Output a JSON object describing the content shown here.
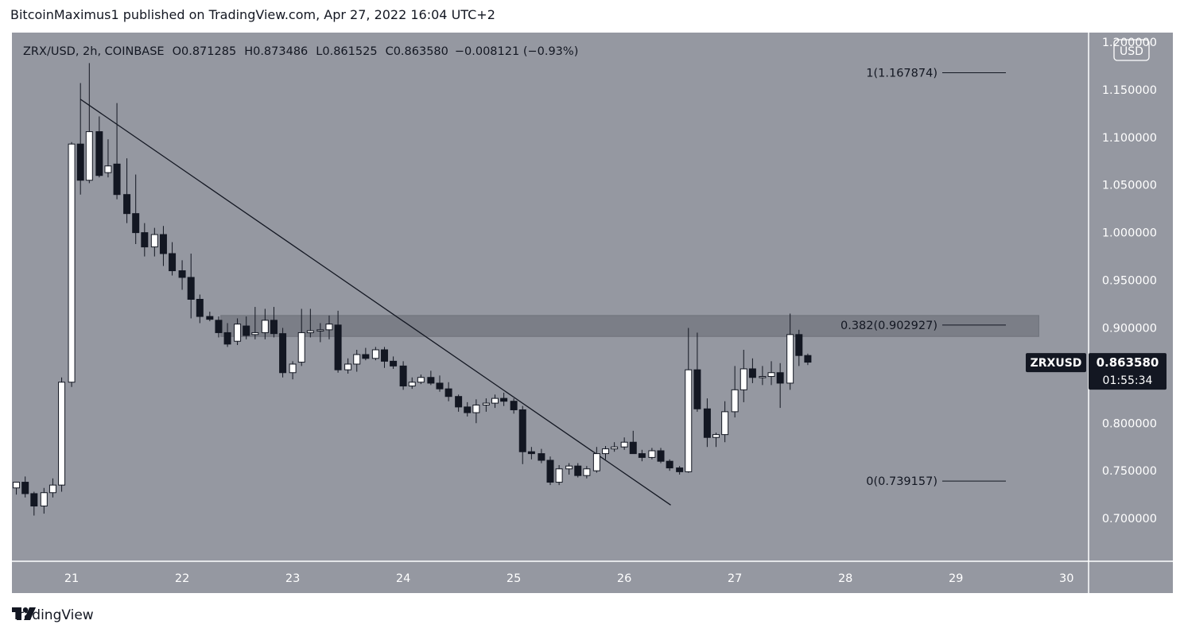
{
  "header": {
    "published_text": "BitcoinMaximus1 published on TradingView.com, Apr 27, 2022 16:04 UTC+2"
  },
  "footer": {
    "brand": "TradingView"
  },
  "colors": {
    "chart_bg": "#9598a1",
    "bull_body": "#ffffff",
    "bear_body": "#131722",
    "text": "#131722",
    "zone": "#7b7e87"
  },
  "chart_data": {
    "type": "candlestick",
    "symbol": "ZRX/USD",
    "interval": "2h",
    "exchange": "COINBASE",
    "ohlc_legend": {
      "o_label": "O",
      "o_value": "0.871285",
      "h_label": "H",
      "h_value": "0.873486",
      "l_label": "L",
      "l_value": "0.861525",
      "c_label": "C",
      "c_value": "0.863580",
      "change": "−0.008121 (−0.93%)"
    },
    "currency_label": "USD",
    "y_ticks": [
      1.2,
      1.15,
      1.1,
      1.05,
      1.0,
      0.95,
      0.9,
      0.85,
      0.8,
      0.75,
      0.7
    ],
    "y_tick_labels": [
      "1.200000",
      "1.150000",
      "1.100000",
      "1.050000",
      "1.000000",
      "0.950000",
      "0.900000",
      "0.850000",
      "0.800000",
      "0.750000",
      "0.700000"
    ],
    "x_ticks": [
      21,
      22,
      23,
      24,
      25,
      26,
      27,
      28,
      29,
      30
    ],
    "x_tick_labels": [
      "21",
      "22",
      "23",
      "24",
      "25",
      "26",
      "27",
      "28",
      "29",
      "30"
    ],
    "y_range": [
      0.655,
      1.21
    ],
    "x_range": [
      20.46,
      30.2
    ],
    "current_price": {
      "symbol_tag": "ZRXUSD",
      "price": "0.863580",
      "countdown": "01:55:34",
      "value": 0.86358
    },
    "fib_levels": [
      {
        "label": "1(1.167874)",
        "value": 1.167874
      },
      {
        "label": "0.382(0.902927)",
        "value": 0.902927
      },
      {
        "label": "0(0.739157)",
        "value": 0.739157
      }
    ],
    "resistance_zone": {
      "low": 0.891,
      "high": 0.913,
      "x_start": 22.35,
      "x_end": 29.75
    },
    "trendline": {
      "x1": 21.08,
      "y1": 1.14,
      "x2": 26.42,
      "y2": 0.714
    },
    "candles": [
      [
        20.5,
        0.732,
        0.738,
        0.725,
        0.738
      ],
      [
        20.58,
        0.738,
        0.744,
        0.722,
        0.726
      ],
      [
        20.66,
        0.726,
        0.728,
        0.703,
        0.713
      ],
      [
        20.75,
        0.713,
        0.732,
        0.705,
        0.727
      ],
      [
        20.83,
        0.727,
        0.742,
        0.722,
        0.735
      ],
      [
        20.91,
        0.735,
        0.848,
        0.728,
        0.843
      ],
      [
        21.0,
        0.843,
        1.095,
        0.838,
        1.093
      ],
      [
        21.08,
        1.093,
        1.157,
        1.04,
        1.055
      ],
      [
        21.16,
        1.055,
        1.178,
        1.052,
        1.106
      ],
      [
        21.25,
        1.106,
        1.122,
        1.058,
        1.06
      ],
      [
        21.33,
        1.063,
        1.098,
        1.058,
        1.07
      ],
      [
        21.41,
        1.072,
        1.136,
        1.035,
        1.04
      ],
      [
        21.5,
        1.04,
        1.078,
        1.01,
        1.02
      ],
      [
        21.58,
        1.02,
        1.061,
        0.988,
        1.0
      ],
      [
        21.66,
        1.0,
        1.01,
        0.975,
        0.985
      ],
      [
        21.75,
        0.985,
        1.005,
        0.975,
        0.998
      ],
      [
        21.83,
        0.998,
        1.007,
        0.965,
        0.978
      ],
      [
        21.91,
        0.978,
        0.99,
        0.955,
        0.96
      ],
      [
        22.0,
        0.96,
        0.971,
        0.94,
        0.953
      ],
      [
        22.08,
        0.953,
        0.978,
        0.91,
        0.93
      ],
      [
        22.16,
        0.93,
        0.935,
        0.905,
        0.912
      ],
      [
        22.25,
        0.912,
        0.917,
        0.907,
        0.909
      ],
      [
        22.33,
        0.908,
        0.912,
        0.89,
        0.895
      ],
      [
        22.41,
        0.895,
        0.905,
        0.88,
        0.883
      ],
      [
        22.5,
        0.886,
        0.91,
        0.882,
        0.904
      ],
      [
        22.58,
        0.902,
        0.912,
        0.888,
        0.892
      ],
      [
        22.66,
        0.893,
        0.922,
        0.888,
        0.895
      ],
      [
        22.75,
        0.895,
        0.92,
        0.888,
        0.908
      ],
      [
        22.83,
        0.908,
        0.922,
        0.89,
        0.894
      ],
      [
        22.91,
        0.894,
        0.9,
        0.848,
        0.853
      ],
      [
        23.0,
        0.853,
        0.865,
        0.846,
        0.862
      ],
      [
        23.08,
        0.864,
        0.92,
        0.86,
        0.895
      ],
      [
        23.16,
        0.895,
        0.92,
        0.89,
        0.897
      ],
      [
        23.25,
        0.897,
        0.905,
        0.885,
        0.898
      ],
      [
        23.33,
        0.898,
        0.913,
        0.888,
        0.904
      ],
      [
        23.41,
        0.903,
        0.918,
        0.853,
        0.856
      ],
      [
        23.5,
        0.856,
        0.868,
        0.852,
        0.862
      ],
      [
        23.58,
        0.862,
        0.877,
        0.854,
        0.872
      ],
      [
        23.66,
        0.872,
        0.879,
        0.866,
        0.868
      ],
      [
        23.75,
        0.868,
        0.88,
        0.866,
        0.877
      ],
      [
        23.83,
        0.877,
        0.88,
        0.858,
        0.865
      ],
      [
        23.91,
        0.865,
        0.87,
        0.857,
        0.86
      ],
      [
        24.0,
        0.86,
        0.865,
        0.835,
        0.839
      ],
      [
        24.08,
        0.839,
        0.848,
        0.836,
        0.843
      ],
      [
        24.16,
        0.843,
        0.851,
        0.841,
        0.848
      ],
      [
        24.25,
        0.848,
        0.855,
        0.84,
        0.842
      ],
      [
        24.33,
        0.842,
        0.85,
        0.833,
        0.836
      ],
      [
        24.41,
        0.836,
        0.843,
        0.823,
        0.828
      ],
      [
        24.5,
        0.828,
        0.83,
        0.812,
        0.817
      ],
      [
        24.58,
        0.817,
        0.822,
        0.807,
        0.811
      ],
      [
        24.66,
        0.811,
        0.825,
        0.8,
        0.819
      ],
      [
        24.75,
        0.819,
        0.826,
        0.812,
        0.821
      ],
      [
        24.83,
        0.821,
        0.83,
        0.816,
        0.826
      ],
      [
        24.91,
        0.826,
        0.832,
        0.818,
        0.823
      ],
      [
        25.0,
        0.823,
        0.826,
        0.81,
        0.814
      ],
      [
        25.08,
        0.814,
        0.818,
        0.757,
        0.77
      ],
      [
        25.16,
        0.77,
        0.775,
        0.762,
        0.768
      ],
      [
        25.25,
        0.768,
        0.773,
        0.758,
        0.761
      ],
      [
        25.33,
        0.761,
        0.765,
        0.735,
        0.738
      ],
      [
        25.41,
        0.738,
        0.756,
        0.735,
        0.752
      ],
      [
        25.5,
        0.752,
        0.758,
        0.746,
        0.755
      ],
      [
        25.58,
        0.755,
        0.758,
        0.743,
        0.745
      ],
      [
        25.66,
        0.745,
        0.755,
        0.742,
        0.752
      ],
      [
        25.75,
        0.75,
        0.775,
        0.748,
        0.768
      ],
      [
        25.83,
        0.768,
        0.776,
        0.762,
        0.773
      ],
      [
        25.91,
        0.773,
        0.78,
        0.77,
        0.775
      ],
      [
        26.0,
        0.775,
        0.785,
        0.772,
        0.78
      ],
      [
        26.08,
        0.78,
        0.792,
        0.768,
        0.768
      ],
      [
        26.16,
        0.768,
        0.772,
        0.76,
        0.764
      ],
      [
        26.25,
        0.764,
        0.774,
        0.762,
        0.771
      ],
      [
        26.33,
        0.771,
        0.774,
        0.758,
        0.76
      ],
      [
        26.41,
        0.76,
        0.762,
        0.75,
        0.753
      ],
      [
        26.5,
        0.753,
        0.755,
        0.746,
        0.749
      ],
      [
        26.58,
        0.749,
        0.9,
        0.748,
        0.856
      ],
      [
        26.66,
        0.856,
        0.895,
        0.812,
        0.815
      ],
      [
        26.75,
        0.815,
        0.826,
        0.775,
        0.785
      ],
      [
        26.83,
        0.785,
        0.79,
        0.775,
        0.788
      ],
      [
        26.91,
        0.788,
        0.823,
        0.78,
        0.812
      ],
      [
        27.0,
        0.812,
        0.86,
        0.806,
        0.835
      ],
      [
        27.08,
        0.835,
        0.877,
        0.822,
        0.857
      ],
      [
        27.16,
        0.857,
        0.868,
        0.842,
        0.848
      ],
      [
        27.25,
        0.848,
        0.86,
        0.84,
        0.849
      ],
      [
        27.33,
        0.849,
        0.865,
        0.84,
        0.853
      ],
      [
        27.41,
        0.853,
        0.863,
        0.816,
        0.842
      ],
      [
        27.5,
        0.842,
        0.915,
        0.835,
        0.893
      ],
      [
        27.58,
        0.893,
        0.898,
        0.86,
        0.871
      ],
      [
        27.66,
        0.871,
        0.873,
        0.861,
        0.864
      ]
    ]
  }
}
